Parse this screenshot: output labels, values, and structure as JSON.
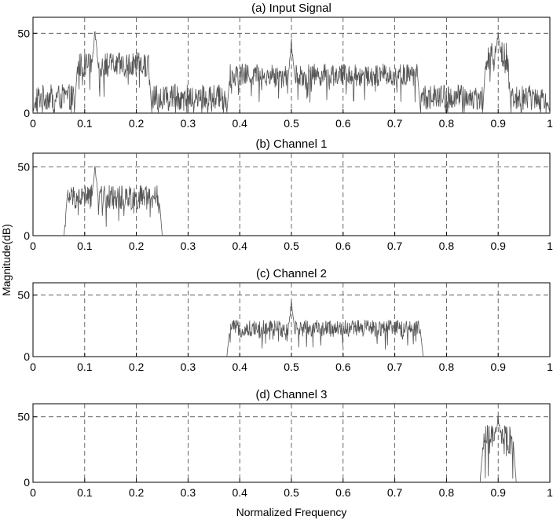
{
  "figure": {
    "shared_ylabel": "Magnitude(dB)",
    "shared_xlabel": "Normalized Frequency"
  },
  "chart_data": [
    {
      "type": "line",
      "title": "(a) Input Signal",
      "xlim": [
        0,
        1
      ],
      "ylim": [
        0,
        60
      ],
      "x_ticks": [
        "0",
        "0.1",
        "0.2",
        "0.3",
        "0.4",
        "0.5",
        "0.6",
        "0.7",
        "0.8",
        "0.9",
        "1"
      ],
      "y_ticks": [
        "0",
        "50"
      ],
      "grid": true,
      "series": [
        {
          "color": "#555555",
          "segments": [
            {
              "x0": 0.0,
              "x1": 1.0,
              "level": 10,
              "spread": 8,
              "floor": 0
            },
            {
              "x0": 0.08,
              "x1": 0.23,
              "level": 30,
              "spread": 8
            },
            {
              "x0": 0.375,
              "x1": 0.75,
              "level": 24,
              "spread": 7
            },
            {
              "x0": 0.87,
              "x1": 0.925,
              "level": 35,
              "spread": 10
            }
          ],
          "peaks": [
            {
              "x": 0.12,
              "y": 54
            },
            {
              "x": 0.5,
              "y": 47
            },
            {
              "x": 0.9,
              "y": 53
            }
          ]
        }
      ]
    },
    {
      "type": "line",
      "title": "(b) Channel 1",
      "xlim": [
        0,
        1
      ],
      "ylim": [
        0,
        60
      ],
      "x_ticks": [
        "0",
        "0.1",
        "0.2",
        "0.3",
        "0.4",
        "0.5",
        "0.6",
        "0.7",
        "0.8",
        "0.9",
        "1"
      ],
      "y_ticks": [
        "0",
        "50"
      ],
      "grid": true,
      "series": [
        {
          "color": "#555555",
          "segments": [
            {
              "x0": 0.06,
              "x1": 0.25,
              "level": 28,
              "spread": 9
            }
          ],
          "peaks": [
            {
              "x": 0.12,
              "y": 54
            }
          ]
        }
      ]
    },
    {
      "type": "line",
      "title": "(c) Channel 2",
      "xlim": [
        0,
        1
      ],
      "ylim": [
        0,
        60
      ],
      "x_ticks": [
        "0",
        "0.1",
        "0.2",
        "0.3",
        "0.4",
        "0.5",
        "0.6",
        "0.7",
        "0.8",
        "0.9",
        "1"
      ],
      "y_ticks": [
        "0",
        "50"
      ],
      "grid": true,
      "series": [
        {
          "color": "#555555",
          "segments": [
            {
              "x0": 0.375,
              "x1": 0.755,
              "level": 23,
              "spread": 7
            }
          ],
          "peaks": [
            {
              "x": 0.5,
              "y": 47
            }
          ]
        }
      ]
    },
    {
      "type": "line",
      "title": "(d) Channel 3",
      "xlim": [
        0,
        1
      ],
      "ylim": [
        0,
        60
      ],
      "x_ticks": [
        "0",
        "0.1",
        "0.2",
        "0.3",
        "0.4",
        "0.5",
        "0.6",
        "0.7",
        "0.8",
        "0.9",
        "1"
      ],
      "y_ticks": [
        "0",
        "50"
      ],
      "grid": true,
      "series": [
        {
          "color": "#555555",
          "segments": [
            {
              "x0": 0.865,
              "x1": 0.935,
              "level": 32,
              "spread": 12
            }
          ],
          "peaks": [
            {
              "x": 0.9,
              "y": 53
            }
          ]
        }
      ]
    }
  ]
}
